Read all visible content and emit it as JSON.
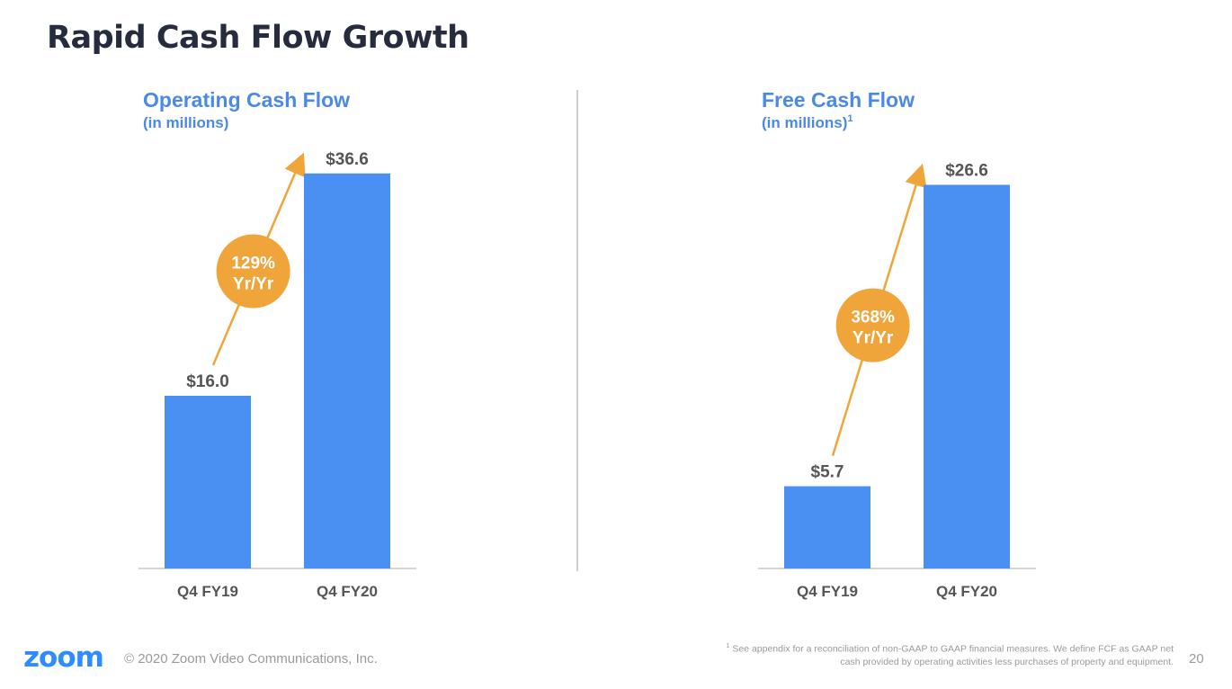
{
  "slide": {
    "title": "Rapid Cash Flow Growth",
    "footer": {
      "logo": "zoom",
      "copyright": "© 2020 Zoom Video Communications, Inc.",
      "footnote_marker": "1",
      "footnote": "See appendix for a reconciliation of non-GAAP to GAAP financial measures. We define FCF as GAAP net cash provided by operating activities less purchases of property and equipment.",
      "page_number": "20"
    }
  },
  "colors": {
    "bar": "#4a8ff2",
    "title_blue": "#4a89e8",
    "growth_orange": "#f0a53a",
    "logo_blue": "#2d8cff"
  },
  "chart_data": [
    {
      "type": "bar",
      "title": "Operating Cash Flow",
      "subtitle": "(in millions)",
      "subtitle_sup": "",
      "categories": [
        "Q4 FY19",
        "Q4 FY20"
      ],
      "values": [
        16.0,
        36.6
      ],
      "value_labels": [
        "$16.0",
        "$36.6"
      ],
      "growth": {
        "line1": "129%",
        "line2": "Yr/Yr"
      },
      "xlabel": "",
      "ylabel": "",
      "ylim": [
        0,
        40
      ],
      "grid": false
    },
    {
      "type": "bar",
      "title": "Free Cash Flow",
      "subtitle": "(in millions)",
      "subtitle_sup": "1",
      "categories": [
        "Q4 FY19",
        "Q4 FY20"
      ],
      "values": [
        5.7,
        26.6
      ],
      "value_labels": [
        "$5.7",
        "$26.6"
      ],
      "growth": {
        "line1": "368%",
        "line2": "Yr/Yr"
      },
      "xlabel": "",
      "ylabel": "",
      "ylim": [
        0,
        29
      ],
      "grid": false
    }
  ]
}
